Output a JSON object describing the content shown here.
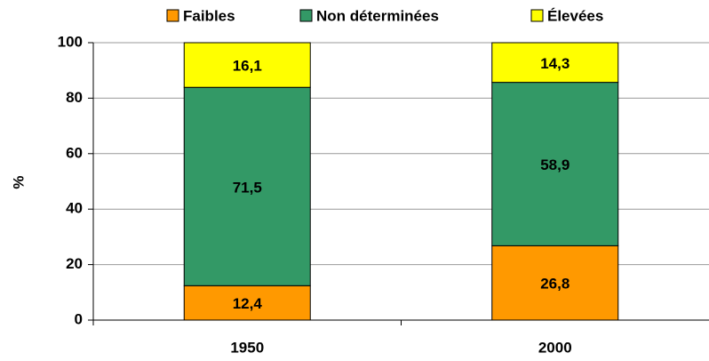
{
  "chart_data": {
    "type": "bar",
    "stacked": true,
    "y_label": "%",
    "categories": [
      "1950",
      "2000"
    ],
    "series": [
      {
        "name": "Faibles",
        "color": "#ff9900",
        "values": [
          12.4,
          26.8
        ],
        "value_labels": [
          "12,4",
          "26,8"
        ]
      },
      {
        "name": "Non déterminées",
        "color": "#339966",
        "values": [
          71.5,
          58.9
        ],
        "value_labels": [
          "71,5",
          "58,9"
        ]
      },
      {
        "name": "Élevées",
        "color": "#ffff00",
        "values": [
          16.1,
          14.3
        ],
        "value_labels": [
          "16,1",
          "14,3"
        ]
      }
    ],
    "ylim": [
      0,
      100
    ],
    "yticks": [
      0,
      20,
      40,
      60,
      80,
      100
    ],
    "grid": true,
    "legend": "top"
  }
}
